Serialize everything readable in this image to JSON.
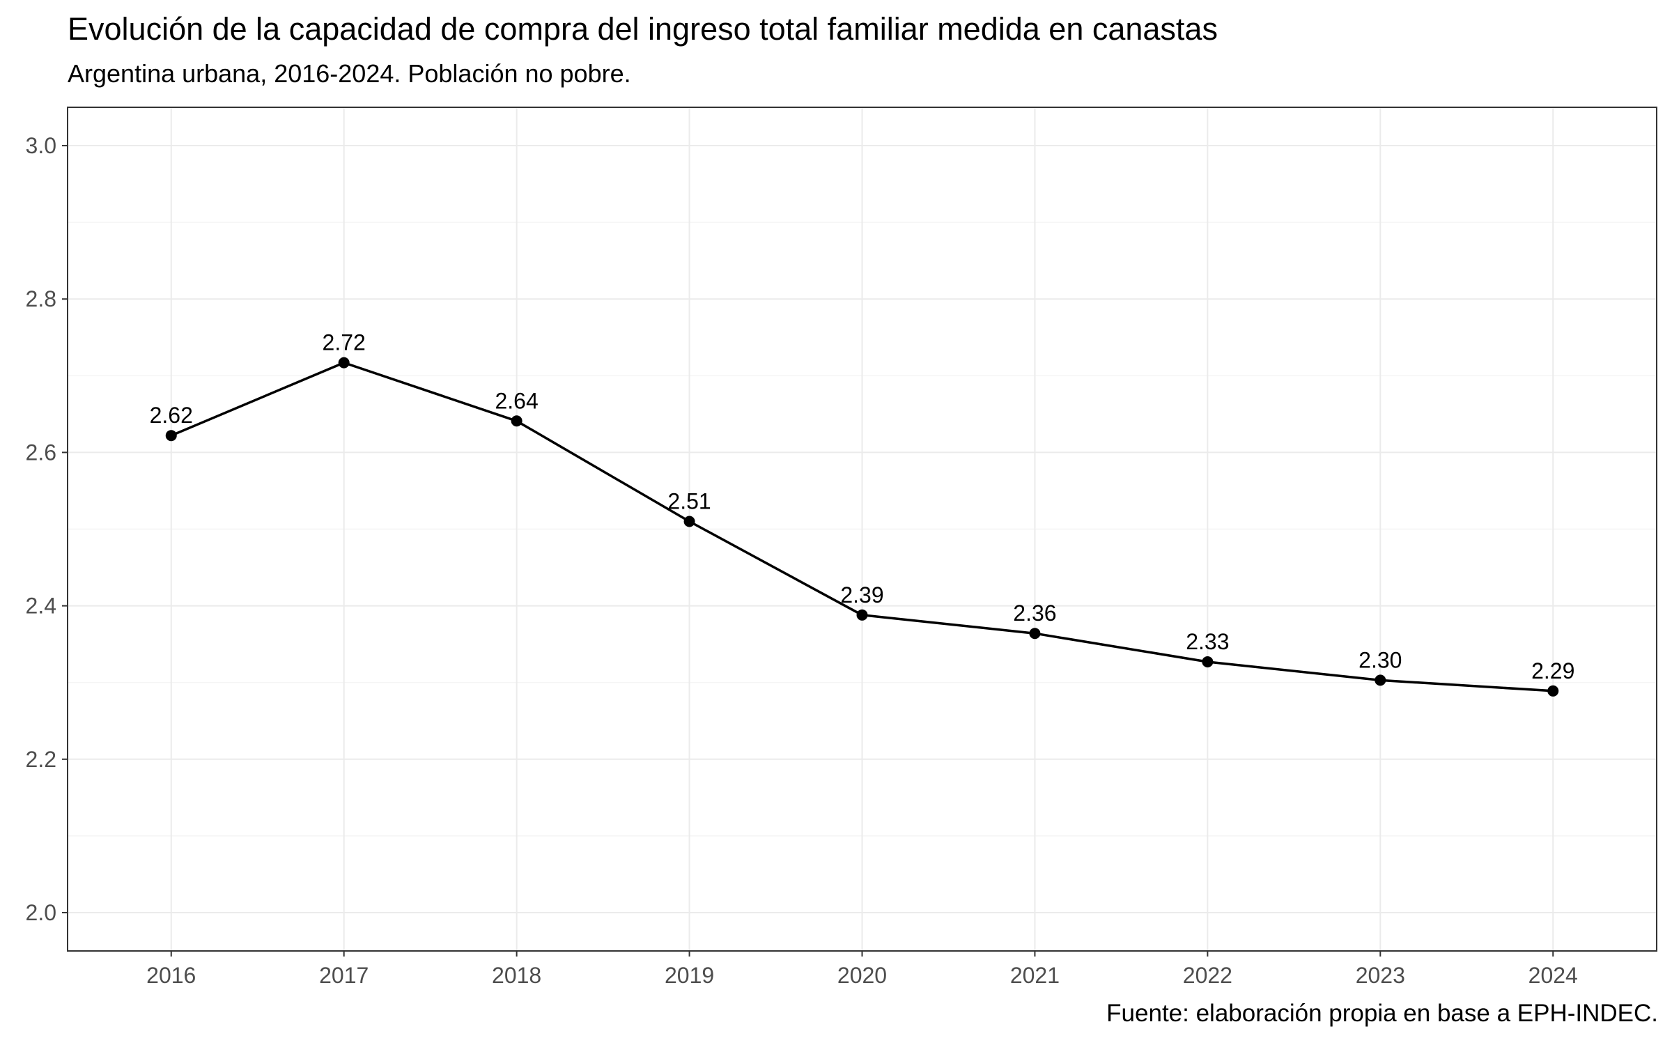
{
  "chart_data": {
    "type": "line",
    "title": "Evolución de la capacidad de compra del ingreso total familiar medida en canastas",
    "subtitle": "Argentina urbana, 2016-2024. Población no pobre.",
    "caption": "Fuente: elaboración propia en base a EPH-INDEC.",
    "xlabel": "",
    "ylabel": "",
    "x": [
      2016,
      2017,
      2018,
      2019,
      2020,
      2021,
      2022,
      2023,
      2024
    ],
    "series": [
      {
        "values": [
          2.622,
          2.717,
          2.641,
          2.51,
          2.388,
          2.364,
          2.327,
          2.303,
          2.289
        ],
        "labels": [
          "2.62",
          "2.72",
          "2.64",
          "2.51",
          "2.39",
          "2.36",
          "2.33",
          "2.30",
          "2.29"
        ],
        "color": "#000000"
      }
    ],
    "xlim": [
      2015.4,
      2024.6
    ],
    "ylim": [
      1.95,
      3.05
    ],
    "x_ticks": [
      "2016",
      "2017",
      "2018",
      "2019",
      "2020",
      "2021",
      "2022",
      "2023",
      "2024"
    ],
    "y_ticks": [
      "2.0",
      "2.2",
      "2.4",
      "2.6",
      "2.8",
      "3.0"
    ],
    "y_tick_values": [
      2.0,
      2.2,
      2.4,
      2.6,
      2.8,
      3.0
    ],
    "y_minor_values": [
      2.1,
      2.3,
      2.5,
      2.7,
      2.9
    ],
    "grid": true,
    "legend": "none",
    "colors": {
      "panel_border": "#333333",
      "grid_major": "#ebebeb",
      "grid_minor": "#f5f5f5",
      "tick_text": "#4d4d4d",
      "line": "#000000"
    }
  }
}
